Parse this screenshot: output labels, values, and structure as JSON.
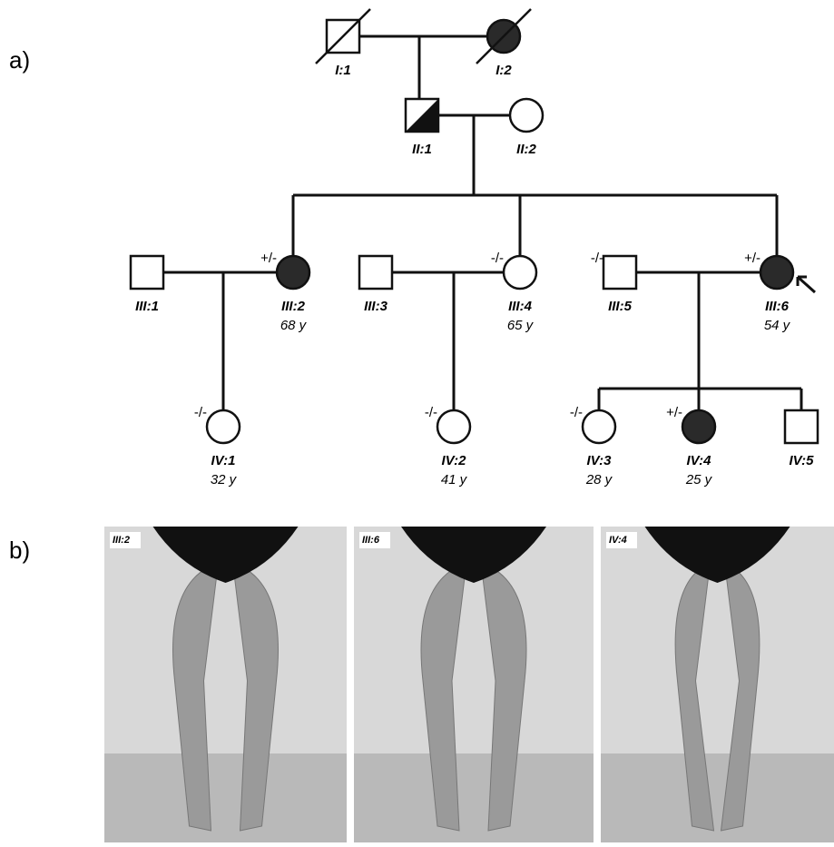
{
  "panels": {
    "a": "a)",
    "b": "b)"
  },
  "nodes": [
    {
      "label": "I:1"
    },
    {
      "label": "I:2"
    },
    {
      "label": "II:1"
    },
    {
      "label": "II:2"
    },
    {
      "label": "III:1"
    },
    {
      "label": "III:2",
      "genotype": "+/-",
      "age": "68 y"
    },
    {
      "label": "III:3"
    },
    {
      "label": "III:4",
      "genotype": "-/-",
      "age": "65 y"
    },
    {
      "label": "III:5",
      "genotype": "-/-"
    },
    {
      "label": "III:6",
      "genotype": "+/-",
      "age": "54 y"
    },
    {
      "label": "IV:1",
      "genotype": "-/-",
      "age": "32 y"
    },
    {
      "label": "IV:2",
      "genotype": "-/-",
      "age": "41 y"
    },
    {
      "label": "IV:3",
      "genotype": "-/-",
      "age": "28 y"
    },
    {
      "label": "IV:4",
      "genotype": "+/-",
      "age": "25 y"
    },
    {
      "label": "IV:5"
    }
  ],
  "photos": [
    {
      "label": "III:2"
    },
    {
      "label": "III:6"
    },
    {
      "label": "IV:4"
    }
  ]
}
